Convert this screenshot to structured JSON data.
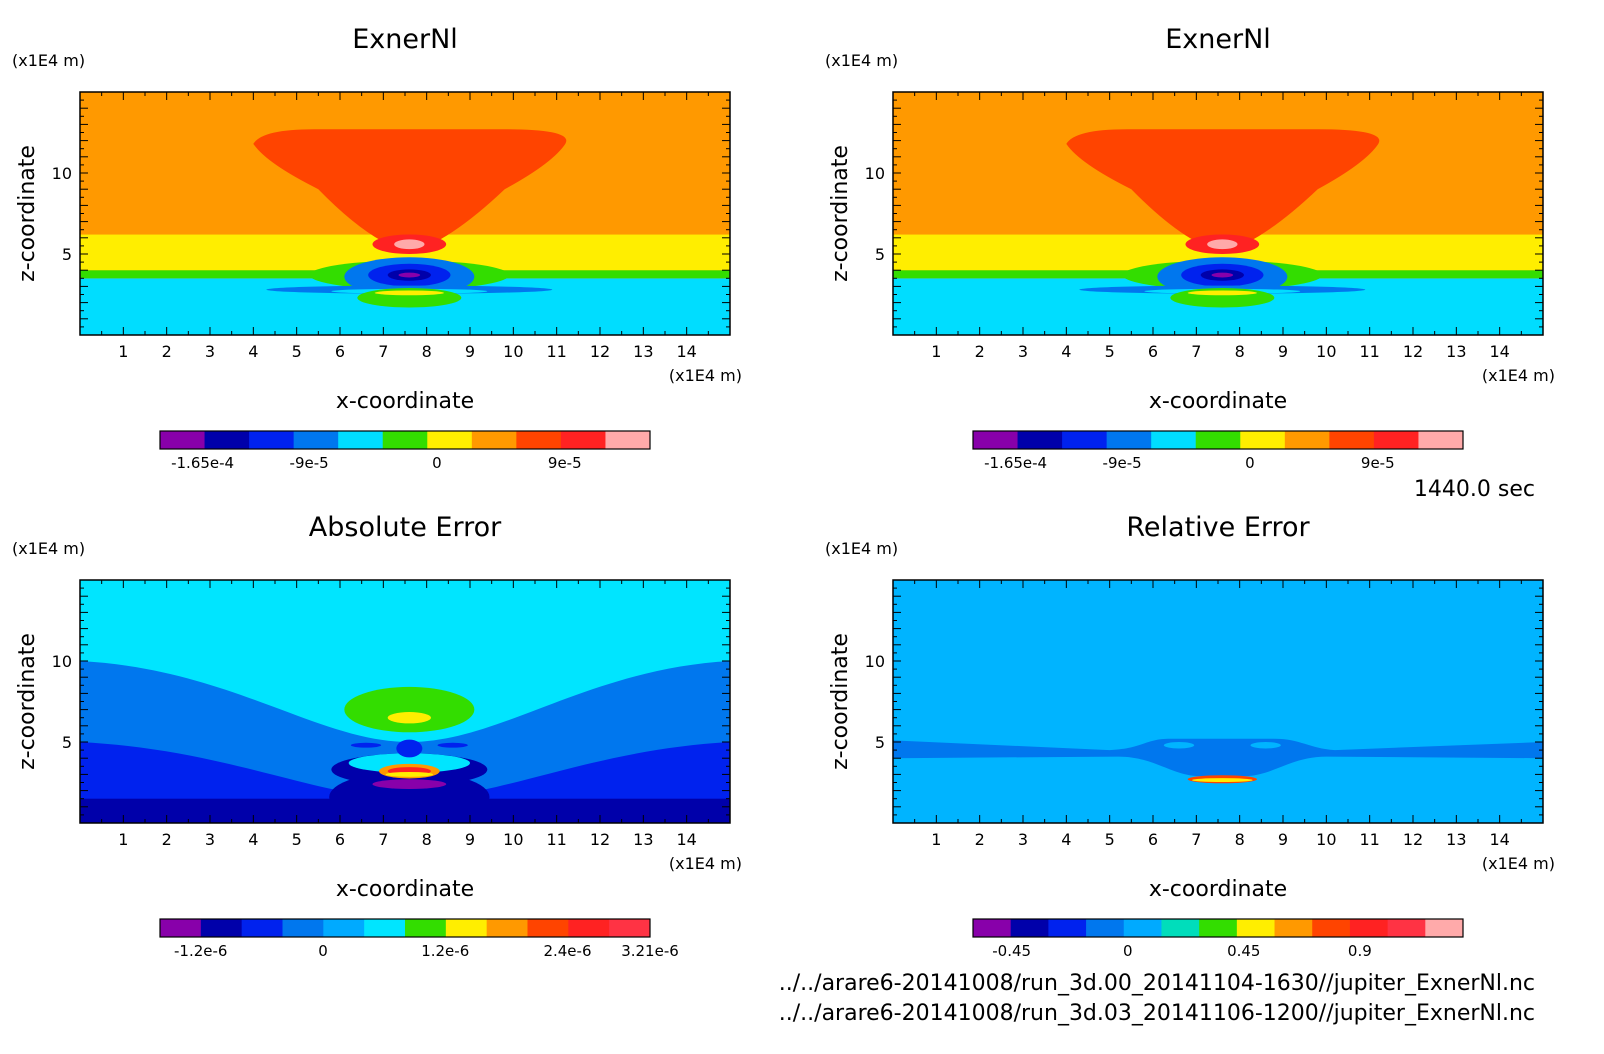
{
  "figure": {
    "time_label": "1440.0 sec",
    "file_paths": [
      "../../arare6-20141008/run_3d.00_20141104-1630//jupiter_ExnerNl.nc",
      "../../arare6-20141008/run_3d.03_20141106-1200//jupiter_ExnerNl.nc"
    ]
  },
  "chart_data": [
    {
      "type": "heatmap",
      "title": "ExnerNl",
      "xlabel": "x-coordinate",
      "ylabel": "z-coordinate",
      "x_unit": "(x1E4 m)",
      "y_unit": "(x1E4 m)",
      "xlim": [
        0,
        15
      ],
      "ylim": [
        0,
        15
      ],
      "x_ticks": [
        "1",
        "2",
        "3",
        "4",
        "5",
        "6",
        "7",
        "8",
        "9",
        "10",
        "11",
        "12",
        "13",
        "14"
      ],
      "y_ticks": [
        "5",
        "10"
      ],
      "background": "#ff9900",
      "layers": [
        {
          "kind": "band",
          "z0": 0,
          "z1": 3.5,
          "color": "#00ddff"
        },
        {
          "kind": "band",
          "z0": 3.5,
          "z1": 4.0,
          "color": "#33dd00"
        },
        {
          "kind": "band",
          "z0": 4.0,
          "z1": 6.2,
          "color": "#ffee00"
        },
        {
          "kind": "plume",
          "x0": 4.0,
          "x1": 11.2,
          "xt0": 5.5,
          "xt1": 9.8,
          "z0": 11.5,
          "z1": 5.5,
          "color": "#ff4400"
        },
        {
          "kind": "ellipse",
          "cx": 7.6,
          "cy": 5.6,
          "rx": 0.85,
          "ry": 0.6,
          "color": "#ff2222"
        },
        {
          "kind": "ellipse",
          "cx": 7.6,
          "cy": 5.6,
          "rx": 0.35,
          "ry": 0.3,
          "color": "#ffaaaa"
        },
        {
          "kind": "ellipse",
          "cx": 7.6,
          "cy": 3.7,
          "rx": 2.3,
          "ry": 0.9,
          "color": "#33dd00"
        },
        {
          "kind": "ellipse",
          "cx": 7.6,
          "cy": 3.6,
          "rx": 1.5,
          "ry": 1.2,
          "color": "#0077ee"
        },
        {
          "kind": "ellipse",
          "cx": 7.6,
          "cy": 3.7,
          "rx": 0.95,
          "ry": 0.7,
          "color": "#0022ee"
        },
        {
          "kind": "ellipse",
          "cx": 7.6,
          "cy": 3.7,
          "rx": 0.5,
          "ry": 0.35,
          "color": "#0000aa"
        },
        {
          "kind": "ellipse",
          "cx": 7.6,
          "cy": 3.7,
          "rx": 0.25,
          "ry": 0.15,
          "color": "#8800aa"
        },
        {
          "kind": "ellipse",
          "cx": 7.6,
          "cy": 2.8,
          "rx": 3.3,
          "ry": 0.25,
          "color": "#0077ee"
        },
        {
          "kind": "ellipse",
          "cx": 7.6,
          "cy": 2.7,
          "rx": 1.8,
          "ry": 0.15,
          "color": "#00ddff"
        },
        {
          "kind": "ellipse",
          "cx": 7.6,
          "cy": 2.3,
          "rx": 1.2,
          "ry": 0.6,
          "color": "#33dd00"
        },
        {
          "kind": "ellipse",
          "cx": 7.6,
          "cy": 2.6,
          "rx": 0.8,
          "ry": 0.15,
          "color": "#ffee00"
        }
      ],
      "colorbar": {
        "colors": [
          "#8800aa",
          "#0000aa",
          "#0022ee",
          "#0077ee",
          "#00ddff",
          "#33dd00",
          "#ffee00",
          "#ff9900",
          "#ff4400",
          "#ff2222",
          "#ffaaaa"
        ],
        "tick_labels": [
          "-1.65e-4",
          "-9e-5",
          "0",
          "9e-5"
        ],
        "tick_values": [
          -0.000165,
          -9e-05,
          0,
          9e-05
        ],
        "range": [
          -0.000195,
          0.00015
        ]
      }
    },
    {
      "type": "heatmap",
      "title": "ExnerNl",
      "xlabel": "x-coordinate",
      "ylabel": "z-coordinate",
      "x_unit": "(x1E4 m)",
      "y_unit": "(x1E4 m)",
      "xlim": [
        0,
        15
      ],
      "ylim": [
        0,
        15
      ],
      "x_ticks": [
        "1",
        "2",
        "3",
        "4",
        "5",
        "6",
        "7",
        "8",
        "9",
        "10",
        "11",
        "12",
        "13",
        "14"
      ],
      "y_ticks": [
        "5",
        "10"
      ],
      "background": "#ff9900",
      "layers": [
        {
          "kind": "band",
          "z0": 0,
          "z1": 3.5,
          "color": "#00ddff"
        },
        {
          "kind": "band",
          "z0": 3.5,
          "z1": 4.0,
          "color": "#33dd00"
        },
        {
          "kind": "band",
          "z0": 4.0,
          "z1": 6.2,
          "color": "#ffee00"
        },
        {
          "kind": "plume",
          "x0": 4.0,
          "x1": 11.2,
          "xt0": 5.5,
          "xt1": 9.8,
          "z0": 11.5,
          "z1": 5.5,
          "color": "#ff4400"
        },
        {
          "kind": "ellipse",
          "cx": 7.6,
          "cy": 5.6,
          "rx": 0.85,
          "ry": 0.6,
          "color": "#ff2222"
        },
        {
          "kind": "ellipse",
          "cx": 7.6,
          "cy": 5.6,
          "rx": 0.35,
          "ry": 0.3,
          "color": "#ffaaaa"
        },
        {
          "kind": "ellipse",
          "cx": 7.6,
          "cy": 3.7,
          "rx": 2.3,
          "ry": 0.9,
          "color": "#33dd00"
        },
        {
          "kind": "ellipse",
          "cx": 7.6,
          "cy": 3.6,
          "rx": 1.5,
          "ry": 1.2,
          "color": "#0077ee"
        },
        {
          "kind": "ellipse",
          "cx": 7.6,
          "cy": 3.7,
          "rx": 0.95,
          "ry": 0.7,
          "color": "#0022ee"
        },
        {
          "kind": "ellipse",
          "cx": 7.6,
          "cy": 3.7,
          "rx": 0.5,
          "ry": 0.35,
          "color": "#0000aa"
        },
        {
          "kind": "ellipse",
          "cx": 7.6,
          "cy": 3.7,
          "rx": 0.25,
          "ry": 0.15,
          "color": "#8800aa"
        },
        {
          "kind": "ellipse",
          "cx": 7.6,
          "cy": 2.8,
          "rx": 3.3,
          "ry": 0.25,
          "color": "#0077ee"
        },
        {
          "kind": "ellipse",
          "cx": 7.6,
          "cy": 2.7,
          "rx": 1.8,
          "ry": 0.15,
          "color": "#00ddff"
        },
        {
          "kind": "ellipse",
          "cx": 7.6,
          "cy": 2.3,
          "rx": 1.2,
          "ry": 0.6,
          "color": "#33dd00"
        },
        {
          "kind": "ellipse",
          "cx": 7.6,
          "cy": 2.6,
          "rx": 0.8,
          "ry": 0.15,
          "color": "#ffee00"
        }
      ],
      "colorbar": {
        "colors": [
          "#8800aa",
          "#0000aa",
          "#0022ee",
          "#0077ee",
          "#00ddff",
          "#33dd00",
          "#ffee00",
          "#ff9900",
          "#ff4400",
          "#ff2222",
          "#ffaaaa"
        ],
        "tick_labels": [
          "-1.65e-4",
          "-9e-5",
          "0",
          "9e-5"
        ],
        "tick_values": [
          -0.000165,
          -9e-05,
          0,
          9e-05
        ],
        "range": [
          -0.000195,
          0.00015
        ]
      }
    },
    {
      "type": "heatmap",
      "title": "Absolute Error",
      "xlabel": "x-coordinate",
      "ylabel": "z-coordinate",
      "x_unit": "(x1E4 m)",
      "y_unit": "(x1E4 m)",
      "xlim": [
        0,
        15
      ],
      "ylim": [
        0,
        15
      ],
      "x_ticks": [
        "1",
        "2",
        "3",
        "4",
        "5",
        "6",
        "7",
        "8",
        "9",
        "10",
        "11",
        "12",
        "13",
        "14"
      ],
      "y_ticks": [
        "5",
        "10"
      ],
      "background": "#00e5ff",
      "layers": [
        {
          "kind": "valley",
          "zlo": 5.0,
          "zhi": 10.0,
          "color": "#0077ee"
        },
        {
          "kind": "valley",
          "zlo": 1.5,
          "zhi": 5.0,
          "color": "#0022ee"
        },
        {
          "kind": "band",
          "z0": 0,
          "z1": 1.5,
          "color": "#0000aa"
        },
        {
          "kind": "ellipse",
          "cx": 7.6,
          "cy": 7.0,
          "rx": 1.5,
          "ry": 1.4,
          "color": "#33dd00"
        },
        {
          "kind": "ellipse",
          "cx": 7.6,
          "cy": 6.5,
          "rx": 0.5,
          "ry": 0.35,
          "color": "#ffee00"
        },
        {
          "kind": "ellipse",
          "cx": 7.6,
          "cy": 3.3,
          "rx": 1.8,
          "ry": 1.0,
          "color": "#0000aa"
        },
        {
          "kind": "ellipse",
          "cx": 7.6,
          "cy": 1.6,
          "rx": 1.85,
          "ry": 1.6,
          "color": "#0000aa"
        },
        {
          "kind": "ellipse",
          "cx": 7.6,
          "cy": 3.7,
          "rx": 1.4,
          "ry": 0.6,
          "color": "#00e5ff"
        },
        {
          "kind": "ellipse",
          "cx": 7.6,
          "cy": 3.2,
          "rx": 0.7,
          "ry": 0.45,
          "color": "#ff9900"
        },
        {
          "kind": "ellipse",
          "cx": 7.6,
          "cy": 3.2,
          "rx": 0.5,
          "ry": 0.25,
          "color": "#ff2222"
        },
        {
          "kind": "ellipse",
          "cx": 7.6,
          "cy": 3.0,
          "rx": 0.55,
          "ry": 0.15,
          "color": "#ffee00"
        },
        {
          "kind": "ellipse",
          "cx": 7.6,
          "cy": 2.4,
          "rx": 0.85,
          "ry": 0.3,
          "color": "#8800aa"
        },
        {
          "kind": "ellipse",
          "cx": 7.6,
          "cy": 4.6,
          "rx": 0.3,
          "ry": 0.55,
          "color": "#0022ee"
        },
        {
          "kind": "ellipse",
          "cx": 6.6,
          "cy": 4.8,
          "rx": 0.35,
          "ry": 0.15,
          "color": "#0022ee"
        },
        {
          "kind": "ellipse",
          "cx": 8.6,
          "cy": 4.8,
          "rx": 0.35,
          "ry": 0.15,
          "color": "#0022ee"
        }
      ],
      "colorbar": {
        "colors": [
          "#8800aa",
          "#0000aa",
          "#0022ee",
          "#0077ee",
          "#00aaff",
          "#00e5ff",
          "#33dd00",
          "#ffee00",
          "#ff9900",
          "#ff4400",
          "#ff2222",
          "#ff3344"
        ],
        "tick_labels": [
          "-1.2e-6",
          "0",
          "1.2e-6",
          "2.4e-6",
          "3.21e-6"
        ],
        "tick_values": [
          -1.2e-06,
          0,
          1.2e-06,
          2.4e-06,
          3.21e-06
        ],
        "range": [
          -1.6e-06,
          3.21e-06
        ]
      }
    },
    {
      "type": "heatmap",
      "title": "Relative Error",
      "xlabel": "x-coordinate",
      "ylabel": "z-coordinate",
      "x_unit": "(x1E4 m)",
      "y_unit": "(x1E4 m)",
      "xlim": [
        0,
        15
      ],
      "ylim": [
        0,
        15
      ],
      "x_ticks": [
        "1",
        "2",
        "3",
        "4",
        "5",
        "6",
        "7",
        "8",
        "9",
        "10",
        "11",
        "12",
        "13",
        "14"
      ],
      "y_ticks": [
        "5",
        "10"
      ],
      "background": "#00b4ff",
      "layers": [
        {
          "kind": "ridge",
          "color": "#0077ee"
        },
        {
          "kind": "ellipse",
          "cx": 6.6,
          "cy": 4.8,
          "rx": 0.35,
          "ry": 0.2,
          "color": "#00b4ff"
        },
        {
          "kind": "ellipse",
          "cx": 8.6,
          "cy": 4.8,
          "rx": 0.35,
          "ry": 0.2,
          "color": "#00b4ff"
        },
        {
          "kind": "ellipse",
          "cx": 7.6,
          "cy": 2.7,
          "rx": 0.8,
          "ry": 0.25,
          "color": "#ff4400"
        },
        {
          "kind": "ellipse",
          "cx": 7.6,
          "cy": 2.65,
          "rx": 0.7,
          "ry": 0.12,
          "color": "#ffee00"
        }
      ],
      "colorbar": {
        "colors": [
          "#8800aa",
          "#0000aa",
          "#0022ee",
          "#0077ee",
          "#00aaff",
          "#00ddbb",
          "#33dd00",
          "#ffee00",
          "#ff9900",
          "#ff4400",
          "#ff2222",
          "#ff3344",
          "#ffaaaa"
        ],
        "tick_labels": [
          "-0.45",
          "0",
          "0.45",
          "0.9"
        ],
        "tick_values": [
          -0.45,
          0,
          0.45,
          0.9
        ],
        "range": [
          -0.6,
          1.3
        ]
      }
    }
  ]
}
